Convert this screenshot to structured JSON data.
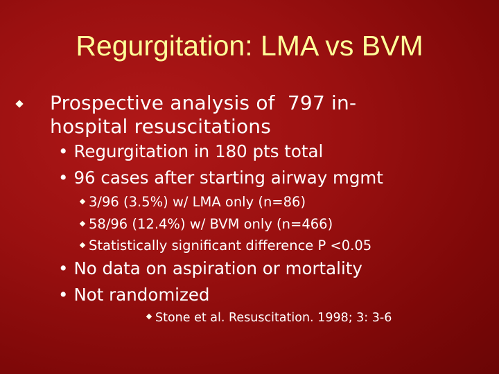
{
  "slide": {
    "title": "Regurgitation: LMA vs BVM",
    "main_point": {
      "line1": "Prospective analysis of  797 in-",
      "line2": "hospital resuscitations"
    },
    "sub_points_a": [
      "Regurgitation in 180 pts total",
      "96 cases after starting airway mgmt"
    ],
    "details": [
      "3/96 (3.5%) w/ LMA only (n=86)",
      "58/96 (12.4%) w/ BVM only (n=466)",
      "Statistically significant difference P <0.05"
    ],
    "sub_points_b": [
      "No data on aspiration or mortality",
      "Not randomized"
    ],
    "reference": "Stone et al. Resuscitation. 1998; 3: 3-6",
    "bullet_char": "•",
    "colors": {
      "title": "#ffff99",
      "text": "#ffffff",
      "background": "#9a1010"
    }
  }
}
